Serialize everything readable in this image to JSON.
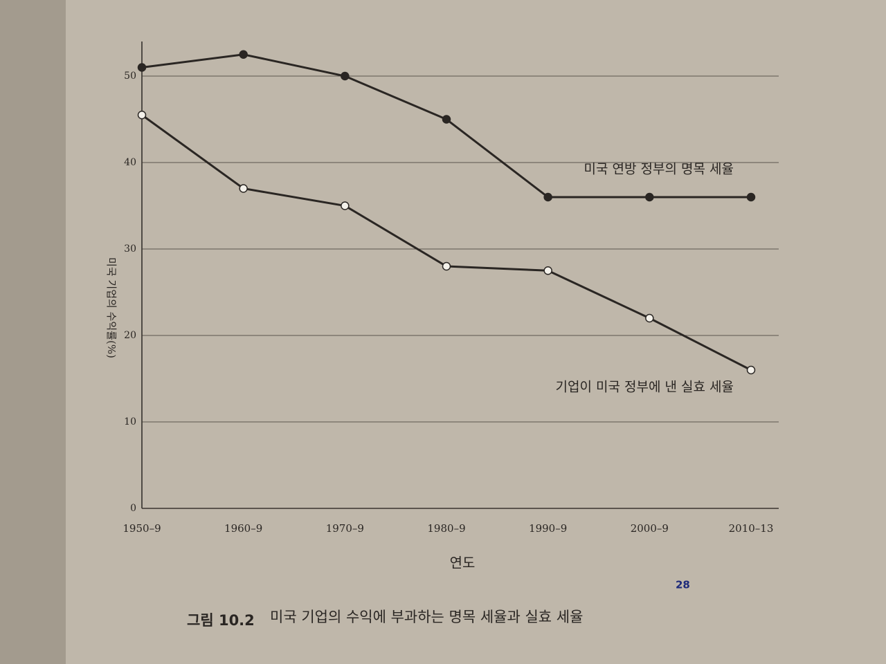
{
  "chart_data": {
    "type": "line",
    "categories": [
      "1950–9",
      "1960–9",
      "1970–9",
      "1980–9",
      "1990–9",
      "2000–9",
      "2010–13"
    ],
    "series": [
      {
        "name": "미국 연방 정부의 명목 세율",
        "color": "#2a2623",
        "marker": "filled",
        "values": [
          51,
          52.5,
          50,
          45,
          36,
          36,
          36
        ]
      },
      {
        "name": "기업이 미국 정부에 낸 실효 세율",
        "color": "#2a2623",
        "marker": "open",
        "values": [
          45.5,
          37,
          35,
          28,
          27.5,
          22,
          16
        ]
      }
    ],
    "ylim": [
      0,
      54
    ],
    "yticks": [
      0,
      10,
      20,
      30,
      40,
      50
    ],
    "grid": true,
    "y_label": "미국 기업의 수익률(%)",
    "x_label": "연도",
    "caption_label": "그림 10.2",
    "caption": "미국 기업의 수익에 부과하는 명목 세율과 실효 세율",
    "caption_note": "28"
  }
}
